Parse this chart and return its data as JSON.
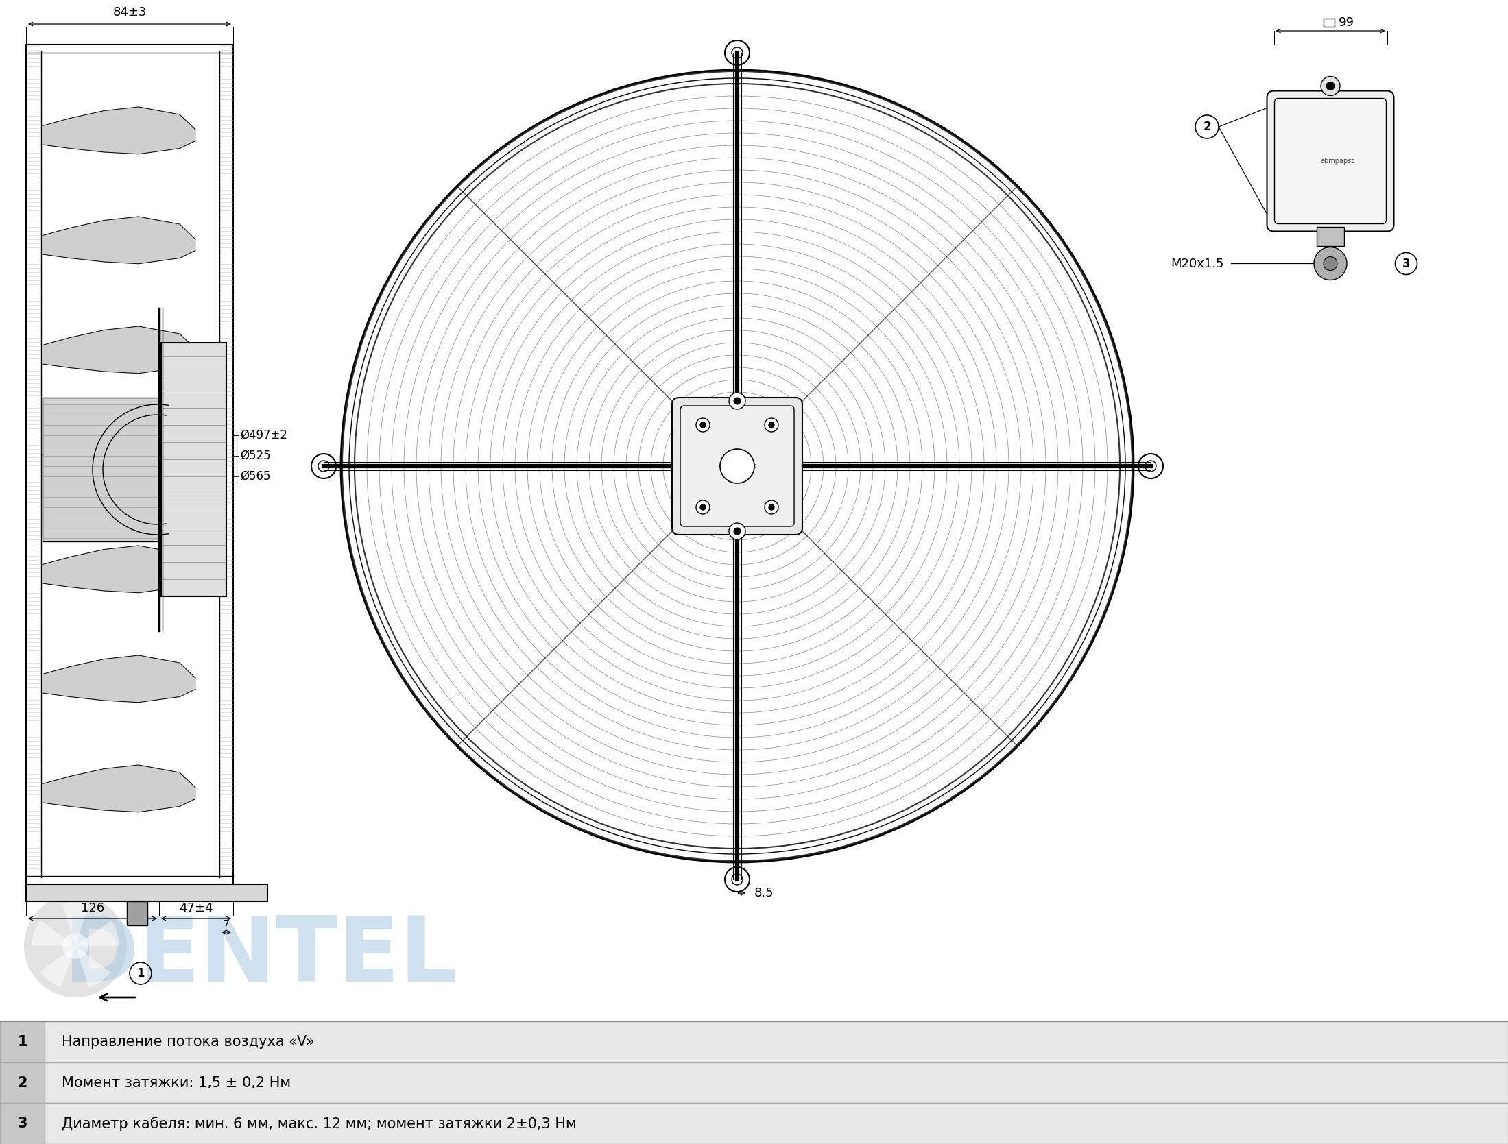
{
  "background_color": "#ffffff",
  "table_rows": [
    {
      "num": "1",
      "text": "Направление потока воздуха «V»"
    },
    {
      "num": "2",
      "text": "Момент затяжки: 1,5 ± 0,2 Нм"
    },
    {
      "num": "3",
      "text": "Диаметр кабеля: мин. 6 мм, макс. 12 мм; момент затяжки 2±0,3 Нм"
    }
  ],
  "table_num_col_color": "#c8c8c8",
  "table_text_col_color": "#e8e8e8",
  "table_border_color": "#aaaaaa",
  "table_num_text_color": "#000000",
  "table_text_font_size": 15,
  "dim_84": "84±3",
  "dim_47": "47±4",
  "dim_126": "126",
  "dim_7": "7",
  "dim_497": "Ø497±2",
  "dim_525": "Ø525",
  "dim_565": "Ø565",
  "dim_8_5": "8.5",
  "dim_99": "99",
  "dim_m20": "M20x1.5",
  "line_color": "#000000",
  "dim_color": "#000000",
  "watermark_blue": "#a8c8e0",
  "watermark_gray": "#b0b0b0"
}
